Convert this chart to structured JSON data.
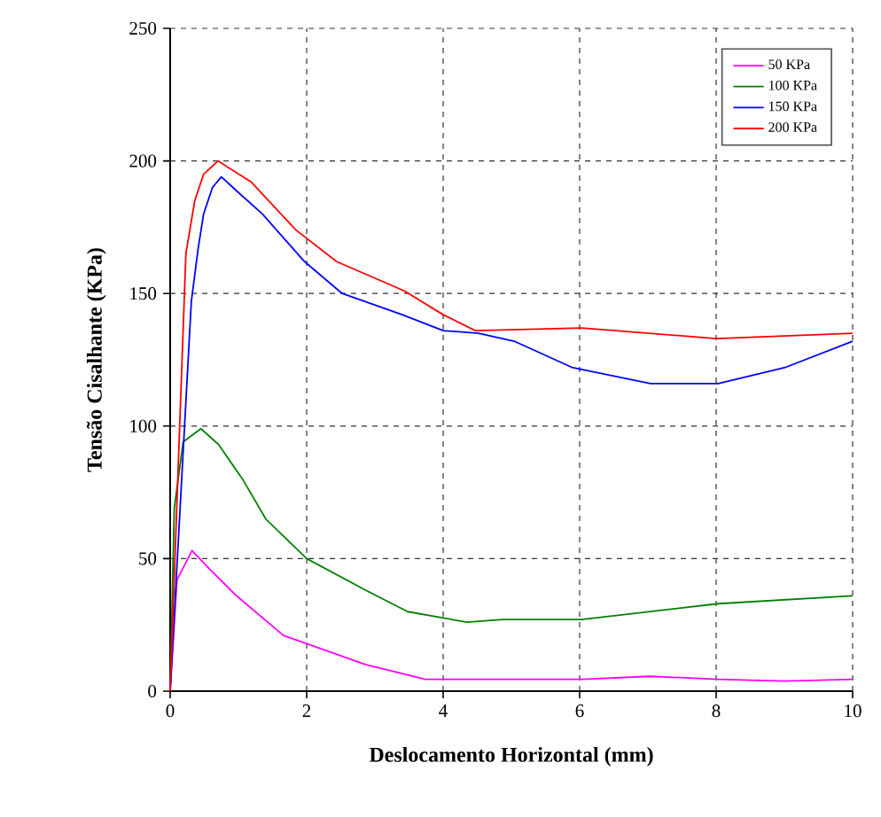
{
  "chart_data": {
    "type": "line",
    "xlabel": "Deslocamento Horizontal (mm)",
    "ylabel": "Tensão Cisalhante (KPa)",
    "xlim": [
      0,
      10
    ],
    "ylim": [
      0,
      250
    ],
    "xticks": [
      0,
      2,
      4,
      6,
      8,
      10
    ],
    "yticks": [
      0,
      50,
      100,
      150,
      200,
      250
    ],
    "grid": true,
    "legend": "top right",
    "marker": "none",
    "line_style": "solid",
    "series": [
      {
        "name": "50  KPa",
        "color": "#ff00ff",
        "x": [
          0,
          0.1,
          0.32,
          0.58,
          0.97,
          1.66,
          2.1,
          2.87,
          3.74,
          6.03,
          7.03,
          8.03,
          9.0,
          10
        ],
        "values": [
          0,
          42,
          53,
          46,
          36,
          21,
          17,
          10,
          4.5,
          4.5,
          5.6,
          4.5,
          3.8,
          4.5
        ]
      },
      {
        "name": "100 KPa",
        "color": "#008000",
        "x": [
          0,
          0.06,
          0.19,
          0.45,
          0.71,
          1.06,
          1.4,
          2.0,
          2.87,
          3.48,
          4.35,
          4.87,
          6.03,
          7.03,
          8.03,
          10
        ],
        "values": [
          0,
          69,
          94,
          99,
          93,
          80,
          65,
          50,
          38,
          30,
          26,
          27,
          27,
          30,
          33,
          36
        ]
      },
      {
        "name": "150 KPa",
        "color": "#0000ff",
        "x": [
          0,
          0.31,
          0.41,
          0.49,
          0.62,
          0.75,
          0.96,
          1.35,
          1.97,
          2.52,
          3.4,
          4.0,
          4.52,
          5.04,
          5.9,
          7.04,
          8.03,
          9.0,
          10
        ],
        "values": [
          0,
          147,
          167,
          180,
          190,
          194,
          189,
          180,
          162,
          150,
          142,
          136,
          135,
          132,
          122,
          116,
          116,
          122,
          132
        ]
      },
      {
        "name": "200 KPa",
        "color": "#ff0000",
        "x": [
          0,
          0.23,
          0.36,
          0.49,
          0.7,
          1.19,
          1.84,
          2.44,
          3.43,
          4.0,
          4.47,
          6.03,
          8.0,
          10
        ],
        "values": [
          0,
          165,
          185,
          195,
          200,
          192,
          174,
          162,
          151,
          142,
          136,
          137,
          133,
          135
        ]
      }
    ]
  }
}
